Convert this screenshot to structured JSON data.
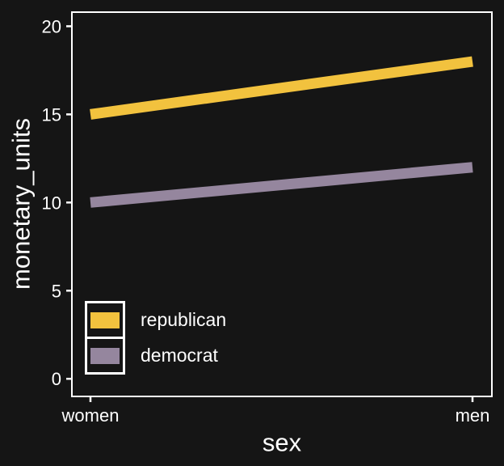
{
  "chart_data": {
    "type": "line",
    "title": "",
    "xlabel": "sex",
    "ylabel": "monetary_units",
    "categories": [
      "women",
      "men"
    ],
    "series": [
      {
        "name": "republican",
        "values": [
          15,
          18
        ],
        "color": "#f2c23e"
      },
      {
        "name": "democrat",
        "values": [
          10,
          12
        ],
        "color": "#95869e"
      }
    ],
    "yticks": [
      0,
      5,
      10,
      15,
      20
    ],
    "ylim": [
      -1,
      20.8
    ],
    "grid": false,
    "legend_position": "inside-bottom-left",
    "line_width": 13,
    "colors": {
      "background": "#151515",
      "foreground": "#ffffff"
    }
  }
}
